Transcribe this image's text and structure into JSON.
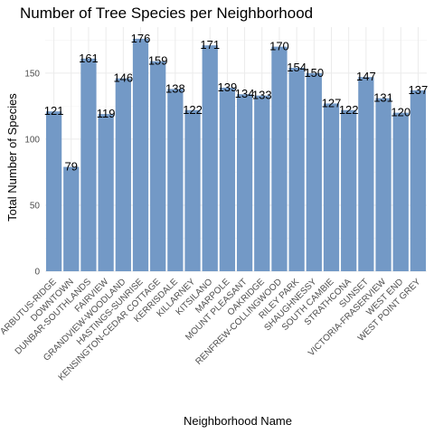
{
  "chart_data": {
    "type": "bar",
    "title": "Number of Tree Species per Neighborhood",
    "xlabel": "Neighborhood Name",
    "ylabel": "Total Number of Species",
    "categories": [
      "ARBUTUS-RIDGE",
      "DOWNTOWN",
      "DUNBAR-SOUTHLANDS",
      "FAIRVIEW",
      "GRANDVIEW-WOODLAND",
      "HASTINGS-SUNRISE",
      "KENSINGTON-CEDAR COTTAGE",
      "KERRISDALE",
      "KILLARNEY",
      "KITSILANO",
      "MARPOLE",
      "MOUNT PLEASANT",
      "OAKRIDGE",
      "RENFREW-COLLINGWOOD",
      "RILEY PARK",
      "SHAUGHNESSY",
      "SOUTH CAMBIE",
      "STRATHCONA",
      "SUNSET",
      "VICTORIA-FRASERVIEW",
      "WEST END",
      "WEST POINT GREY"
    ],
    "values": [
      121,
      79,
      161,
      119,
      146,
      176,
      159,
      138,
      122,
      171,
      139,
      134,
      133,
      170,
      154,
      150,
      127,
      122,
      147,
      131,
      120,
      137
    ],
    "value_labels": [
      "121",
      "79",
      "161",
      "119",
      "146",
      "176",
      "159",
      "138",
      "122",
      "171",
      "139",
      "134",
      "133",
      "170",
      "154",
      "150",
      "127",
      "122",
      "147",
      "131",
      "120",
      "137"
    ],
    "y_ticks": [
      0,
      50,
      100,
      150
    ],
    "y_tick_labels": [
      "0",
      "50",
      "100",
      "150"
    ],
    "ylim": [
      0,
      184.8
    ],
    "grid": true,
    "legend": "none",
    "bar_color": "#7399c6"
  }
}
